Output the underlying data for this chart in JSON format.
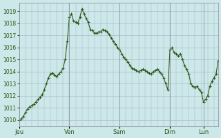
{
  "background_color": "#cce8e8",
  "line_color": "#2d5a1b",
  "marker": "+",
  "marker_size": 3,
  "line_width": 0.8,
  "ylim": [
    1009.5,
    1019.7
  ],
  "yticks": [
    1010,
    1011,
    1012,
    1013,
    1014,
    1015,
    1016,
    1017,
    1018,
    1019
  ],
  "tick_label_color": "#2d5a1b",
  "grid_color": "#aaaacc",
  "day_labels": [
    "Jeu",
    "Ven",
    "Sam",
    "Dim",
    "Lun"
  ],
  "day_positions": [
    0,
    24,
    48,
    72,
    88
  ],
  "vline_positions": [
    0,
    24,
    48,
    72,
    88
  ],
  "x_values": [
    0,
    1,
    2,
    3,
    4,
    5,
    6,
    7,
    8,
    9,
    10,
    11,
    12,
    13,
    14,
    15,
    16,
    17,
    18,
    19,
    20,
    21,
    22,
    23,
    24,
    25,
    26,
    27,
    28,
    29,
    30,
    31,
    32,
    33,
    34,
    35,
    36,
    37,
    38,
    39,
    40,
    41,
    42,
    43,
    44,
    45,
    46,
    47,
    48,
    49,
    50,
    51,
    52,
    53,
    54,
    55,
    56,
    57,
    58,
    59,
    60,
    61,
    62,
    63,
    64,
    65,
    66,
    67,
    68,
    69,
    70,
    71,
    72,
    73,
    74,
    75,
    76,
    77,
    78,
    79,
    80,
    81,
    82,
    83,
    84,
    85,
    86,
    87,
    88,
    89,
    90,
    91,
    92,
    93,
    94,
    95
  ],
  "y_values": [
    1010.0,
    1010.1,
    1010.3,
    1010.6,
    1010.9,
    1011.1,
    1011.2,
    1011.3,
    1011.5,
    1011.7,
    1011.9,
    1012.1,
    1012.5,
    1013.0,
    1013.5,
    1013.8,
    1013.9,
    1013.7,
    1013.6,
    1013.8,
    1014.0,
    1014.3,
    1015.0,
    1016.5,
    1018.5,
    1018.8,
    1018.2,
    1018.1,
    1018.0,
    1018.5,
    1019.2,
    1018.8,
    1018.4,
    1018.1,
    1017.5,
    1017.4,
    1017.2,
    1017.2,
    1017.3,
    1017.3,
    1017.5,
    1017.4,
    1017.3,
    1017.1,
    1016.8,
    1016.5,
    1016.3,
    1016.0,
    1015.8,
    1015.5,
    1015.2,
    1015.0,
    1014.8,
    1014.5,
    1014.3,
    1014.2,
    1014.1,
    1014.0,
    1014.1,
    1014.2,
    1014.1,
    1014.0,
    1013.9,
    1013.8,
    1014.0,
    1014.1,
    1014.2,
    1014.0,
    1013.8,
    1013.5,
    1013.0,
    1012.5,
    1015.8,
    1016.0,
    1015.6,
    1015.5,
    1015.3,
    1015.5,
    1015.0,
    1014.5,
    1014.2,
    1013.8,
    1013.0,
    1012.8,
    1012.7,
    1012.8,
    1012.5,
    1012.3,
    1011.5,
    1011.7,
    1012.0,
    1012.8,
    1013.2,
    1013.5,
    1013.8,
    1014.9
  ]
}
